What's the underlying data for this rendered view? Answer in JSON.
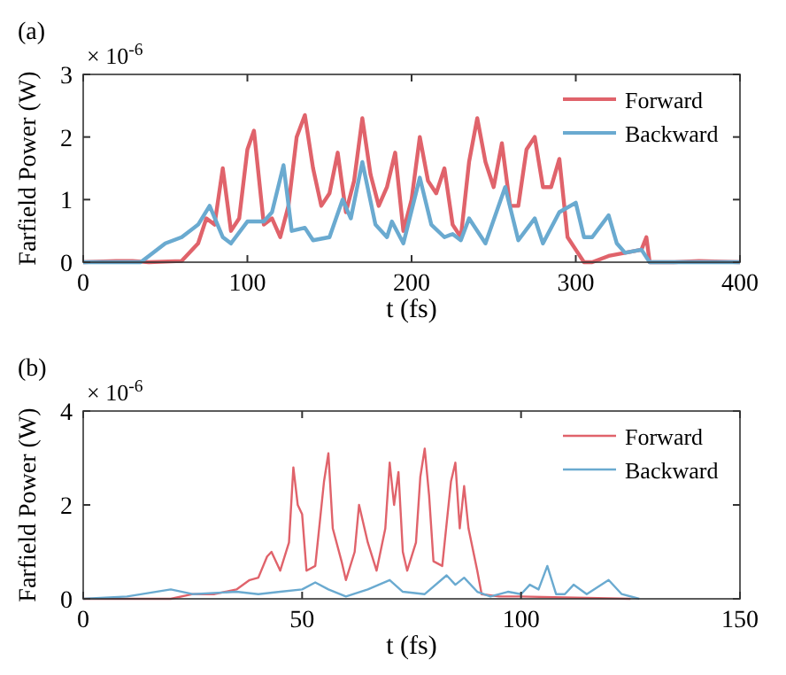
{
  "chart_data": [
    {
      "type": "line",
      "title": "(a)",
      "xlabel": "t (fs)",
      "ylabel": "Farfield Power (W)",
      "annotations": [
        "× 10$^{-6}$"
      ],
      "xlim": [
        0,
        400
      ],
      "xticks": [
        0,
        100,
        200,
        300,
        400
      ],
      "ylim": [
        0,
        3
      ],
      "yticks": [
        0,
        1,
        2,
        3
      ],
      "grid": false,
      "legend": "top right",
      "line_style": "solid",
      "marker": "none",
      "series": [
        {
          "name": "Forward",
          "color": "#e0636b",
          "x": [
            0,
            20,
            30,
            40,
            60,
            70,
            75,
            80,
            85,
            90,
            95,
            100,
            104,
            110,
            115,
            120,
            125,
            130,
            135,
            140,
            145,
            150,
            155,
            160,
            165,
            170,
            175,
            180,
            185,
            190,
            195,
            200,
            205,
            210,
            215,
            220,
            225,
            230,
            235,
            240,
            245,
            250,
            255,
            260,
            265,
            270,
            275,
            280,
            285,
            290,
            295,
            300,
            305,
            310,
            320,
            330,
            340,
            343,
            345,
            360,
            375,
            400
          ],
          "values": [
            0,
            0.02,
            0.02,
            0,
            0.02,
            0.3,
            0.7,
            0.6,
            1.5,
            0.5,
            0.7,
            1.8,
            2.1,
            0.6,
            0.7,
            0.4,
            0.9,
            2.0,
            2.35,
            1.5,
            0.9,
            1.1,
            1.75,
            0.8,
            1.3,
            2.3,
            1.4,
            0.9,
            1.2,
            1.75,
            0.5,
            1.0,
            2.0,
            1.3,
            1.1,
            1.5,
            0.6,
            0.4,
            1.6,
            2.3,
            1.6,
            1.2,
            1.9,
            0.9,
            0.9,
            1.8,
            2.0,
            1.2,
            1.2,
            1.65,
            0.4,
            0.2,
            0,
            0,
            0.1,
            0.15,
            0.2,
            0.4,
            0,
            0,
            0.02,
            0
          ]
        },
        {
          "name": "Backward",
          "color": "#6aaad0",
          "x": [
            0,
            35,
            40,
            50,
            60,
            70,
            77,
            85,
            90,
            100,
            110,
            115,
            122,
            127,
            135,
            140,
            150,
            158,
            163,
            170,
            178,
            185,
            188,
            195,
            205,
            212,
            220,
            225,
            230,
            235,
            245,
            257,
            265,
            275,
            280,
            290,
            300,
            305,
            310,
            320,
            325,
            330,
            340,
            345,
            400
          ],
          "values": [
            0,
            0,
            0.1,
            0.3,
            0.4,
            0.6,
            0.9,
            0.4,
            0.3,
            0.65,
            0.65,
            0.8,
            1.55,
            0.5,
            0.55,
            0.35,
            0.4,
            1.0,
            0.7,
            1.6,
            0.6,
            0.4,
            0.65,
            0.3,
            1.35,
            0.6,
            0.4,
            0.45,
            0.35,
            0.7,
            0.3,
            1.2,
            0.35,
            0.7,
            0.3,
            0.8,
            0.95,
            0.4,
            0.4,
            0.75,
            0.3,
            0.15,
            0.2,
            0,
            0
          ]
        }
      ]
    },
    {
      "type": "line",
      "title": "(b)",
      "xlabel": "t (fs)",
      "ylabel": "Farfield Power (W)",
      "annotations": [
        "× 10$^{-6}$"
      ],
      "xlim": [
        0,
        150
      ],
      "xticks": [
        0,
        50,
        100,
        150
      ],
      "ylim": [
        0,
        4
      ],
      "yticks": [
        0,
        2,
        4
      ],
      "grid": false,
      "legend": "top right",
      "line_style": "solid",
      "marker": "none",
      "series": [
        {
          "name": "Forward",
          "color": "#e0636b",
          "x": [
            0,
            20,
            25,
            30,
            35,
            38,
            40,
            42,
            43,
            45,
            47,
            48,
            49,
            50,
            51,
            53,
            55,
            56,
            57,
            59,
            60,
            62,
            63,
            65,
            67,
            69,
            70,
            71,
            72,
            73,
            74,
            76,
            77,
            78,
            79,
            80,
            82,
            84,
            85,
            86,
            87,
            88,
            90,
            91,
            95,
            100,
            115,
            125
          ],
          "values": [
            0,
            0,
            0.1,
            0.1,
            0.2,
            0.4,
            0.45,
            0.9,
            1.0,
            0.6,
            1.2,
            2.8,
            2.0,
            1.8,
            0.6,
            0.7,
            2.5,
            3.1,
            1.5,
            0.8,
            0.4,
            1.0,
            2.0,
            1.2,
            0.6,
            1.5,
            2.9,
            2.0,
            2.7,
            1.0,
            0.6,
            1.2,
            2.6,
            3.2,
            2.2,
            0.8,
            0.7,
            2.5,
            2.9,
            1.5,
            2.4,
            1.5,
            0.6,
            0.1,
            0.05,
            0.05,
            0.02,
            0
          ]
        },
        {
          "name": "Backward",
          "color": "#6aaad0",
          "x": [
            0,
            10,
            20,
            25,
            35,
            40,
            45,
            50,
            53,
            56,
            60,
            65,
            70,
            73,
            78,
            83,
            85,
            87,
            90,
            93,
            97,
            100,
            102,
            104,
            106,
            108,
            110,
            112,
            115,
            120,
            123,
            127
          ],
          "values": [
            0,
            0.05,
            0.2,
            0.1,
            0.15,
            0.1,
            0.15,
            0.2,
            0.35,
            0.2,
            0.05,
            0.2,
            0.4,
            0.15,
            0.1,
            0.5,
            0.3,
            0.45,
            0.15,
            0.05,
            0.15,
            0.1,
            0.3,
            0.2,
            0.7,
            0.1,
            0.1,
            0.3,
            0.1,
            0.4,
            0.1,
            0
          ]
        }
      ]
    }
  ]
}
